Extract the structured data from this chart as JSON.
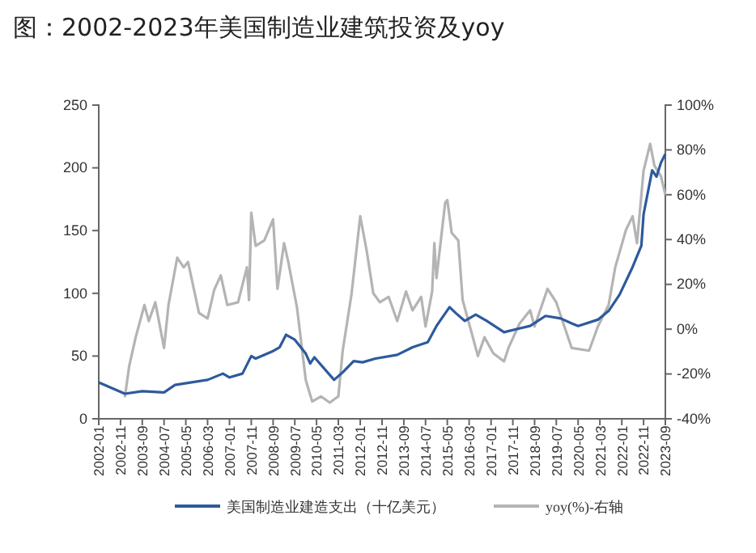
{
  "chart_data": {
    "type": "line",
    "title": "图：2002-2023年美国制造业建筑投资及yoy",
    "xlim": [
      "2002-01",
      "2023-09"
    ],
    "xticks": [
      "2002-01",
      "2002-11",
      "2003-09",
      "2004-07",
      "2005-05",
      "2006-03",
      "2007-01",
      "2007-11",
      "2008-09",
      "2009-07",
      "2010-05",
      "2011-03",
      "2012-01",
      "2012-11",
      "2013-09",
      "2014-07",
      "2015-05",
      "2016-03",
      "2017-01",
      "2017-11",
      "2018-09",
      "2019-07",
      "2020-05",
      "2021-03",
      "2022-01",
      "2022-11",
      "2023-09"
    ],
    "ylim": [
      0,
      250
    ],
    "yticks": [
      0,
      50,
      100,
      150,
      200,
      250
    ],
    "y2lim": [
      -40,
      100
    ],
    "y2ticks": [
      {
        "value": -40,
        "label": "-40%"
      },
      {
        "value": -20,
        "label": "-20%"
      },
      {
        "value": 0,
        "label": "0%"
      },
      {
        "value": 20,
        "label": "20%"
      },
      {
        "value": 40,
        "label": "40%"
      },
      {
        "value": 60,
        "label": "60%"
      },
      {
        "value": 80,
        "label": "80%"
      },
      {
        "value": 100,
        "label": "100%"
      }
    ],
    "legend": "bottom",
    "line_style": "solid",
    "series": [
      {
        "name": "美国制造业建造支出（十亿美元）",
        "color": "#2e5a9c",
        "x": [
          "2002-01",
          "2003-01",
          "2003-09",
          "2004-07",
          "2004-12",
          "2006-03",
          "2006-10",
          "2007-01",
          "2007-07",
          "2007-11",
          "2008-01",
          "2008-09",
          "2008-12",
          "2009-03",
          "2009-07",
          "2009-12",
          "2010-02",
          "2010-04",
          "2011-01",
          "2011-05",
          "2011-10",
          "2012-02",
          "2012-08",
          "2013-06",
          "2014-01",
          "2014-08",
          "2014-12",
          "2015-06",
          "2015-09",
          "2016-01",
          "2016-06",
          "2016-11",
          "2017-07",
          "2018-02",
          "2018-07",
          "2019-02",
          "2019-09",
          "2020-02",
          "2020-05",
          "2021-02",
          "2021-07",
          "2021-12",
          "2022-06",
          "2022-10",
          "2022-11",
          "2023-03",
          "2023-05",
          "2023-07",
          "2023-09"
        ],
        "values": [
          29,
          20,
          22,
          21,
          27,
          31,
          36,
          33,
          36,
          50,
          48,
          54,
          57,
          67,
          63,
          52,
          44,
          49,
          31,
          37,
          46,
          45,
          48,
          51,
          57,
          61,
          74,
          89,
          84,
          78,
          83,
          78,
          69,
          72,
          74,
          82,
          80,
          76,
          74,
          79,
          86,
          99,
          121,
          138,
          163,
          198,
          193,
          204,
          211
        ]
      },
      {
        "name": "yoy(%)-右轴",
        "color": "#b4b4b4",
        "axis": "y2",
        "x": [
          "2003-01",
          "2003-03",
          "2003-06",
          "2003-10",
          "2003-12",
          "2004-03",
          "2004-07",
          "2004-09",
          "2005-01",
          "2005-04",
          "2005-06",
          "2005-11",
          "2006-03",
          "2006-06",
          "2006-09",
          "2006-12",
          "2007-05",
          "2007-09",
          "2007-10",
          "2007-11",
          "2008-01",
          "2008-05",
          "2008-09",
          "2008-11",
          "2009-02",
          "2009-04",
          "2009-08",
          "2009-12",
          "2010-03",
          "2010-07",
          "2010-11",
          "2011-03",
          "2011-05",
          "2011-09",
          "2012-01",
          "2012-04",
          "2012-07",
          "2012-10",
          "2013-02",
          "2013-06",
          "2013-10",
          "2014-01",
          "2014-05",
          "2014-07",
          "2014-10",
          "2014-11",
          "2014-12",
          "2015-04",
          "2015-05",
          "2015-07",
          "2015-10",
          "2015-12",
          "2016-04",
          "2016-07",
          "2016-10",
          "2017-02",
          "2017-07",
          "2017-09",
          "2018-02",
          "2018-07",
          "2018-09",
          "2019-03",
          "2019-07",
          "2019-09",
          "2020-02",
          "2020-10",
          "2021-02",
          "2021-07",
          "2021-10",
          "2022-03",
          "2022-06",
          "2022-08",
          "2022-11",
          "2023-02",
          "2023-04",
          "2023-07",
          "2023-09"
        ],
        "values": [
          -30.4,
          -16.7,
          -3.6,
          10.8,
          3.6,
          12,
          -8.4,
          10.8,
          31.9,
          27.6,
          30,
          7.2,
          4.8,
          17.5,
          24,
          10.8,
          12,
          27.6,
          13,
          52,
          37.2,
          39.6,
          49,
          18,
          38.4,
          30,
          9.6,
          -22.7,
          -32.3,
          -30,
          -32.8,
          -30,
          -9.6,
          15.6,
          50.4,
          34.8,
          16,
          12,
          14.4,
          3.6,
          16.8,
          8.4,
          14.4,
          1.2,
          16.8,
          38.4,
          22.8,
          56.4,
          57.6,
          43,
          39.6,
          13,
          -1.2,
          -12,
          -3.6,
          -10.8,
          -14.4,
          -8.4,
          2.4,
          8.4,
          1.2,
          18,
          12,
          6,
          -8.4,
          -9.6,
          1.2,
          10.8,
          27.6,
          44.4,
          50.4,
          38.4,
          70.7,
          82.7,
          73,
          68.3,
          60
        ]
      }
    ]
  }
}
